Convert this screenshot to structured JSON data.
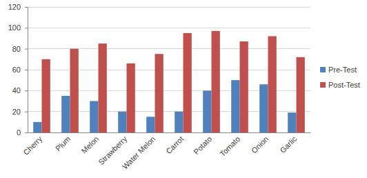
{
  "chart_data": {
    "type": "bar",
    "categories": [
      "Cherry",
      "Plum",
      "Melon",
      "Strawberry",
      "Water Melon",
      "Carrot",
      "Potato",
      "Tomato",
      "Onion",
      "Garlic"
    ],
    "series": [
      {
        "name": "Pre-Test",
        "color": "#4f81bd",
        "values": [
          10,
          35,
          30,
          20,
          15,
          20,
          40,
          50,
          46,
          19
        ]
      },
      {
        "name": "Post-Test",
        "color": "#c0504d",
        "values": [
          70,
          80,
          85,
          66,
          75,
          95,
          97,
          87,
          92,
          72
        ]
      }
    ],
    "ylim": [
      0,
      120
    ],
    "yticks": [
      0,
      20,
      40,
      60,
      80,
      100,
      120
    ],
    "grid": true,
    "legend": "right"
  }
}
